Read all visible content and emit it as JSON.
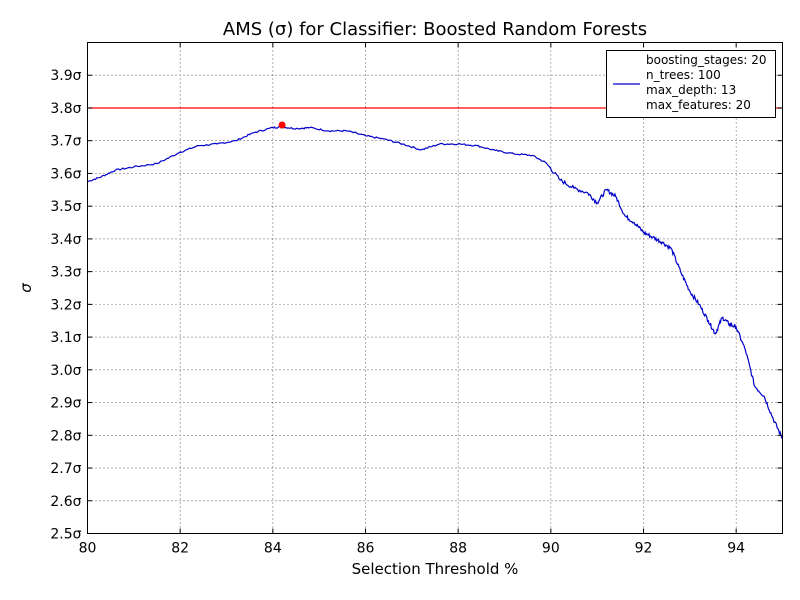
{
  "chart_data": {
    "type": "line",
    "title": "AMS (σ) for Classifier: Boosted Random Forests",
    "xlabel": "Selection Threshold %",
    "ylabel": "σ",
    "xlim": [
      80,
      95
    ],
    "ylim": [
      2.5,
      4.0
    ],
    "x_ticks": [
      80,
      82,
      84,
      86,
      88,
      90,
      92,
      94
    ],
    "y_ticks": [
      2.5,
      2.6,
      2.7,
      2.8,
      2.9,
      3.0,
      3.1,
      3.2,
      3.3,
      3.4,
      3.5,
      3.6,
      3.7,
      3.8,
      3.9
    ],
    "y_tick_suffix": "σ",
    "grid": true,
    "legend_position": "top-right",
    "legend_lines": [
      "boosting_stages: 20",
      "n_trees: 100",
      "max_depth: 13",
      "max_features: 20"
    ],
    "reference_line": {
      "y": 3.8,
      "color": "#ff0000"
    },
    "max_point": {
      "x": 84.2,
      "y": 3.748,
      "color": "#ff0000"
    },
    "series": [
      {
        "color": "#0000cc",
        "x": [
          80.0,
          80.3,
          80.6,
          81.0,
          81.5,
          82.0,
          82.4,
          82.8,
          83.2,
          83.6,
          84.0,
          84.2,
          84.5,
          84.8,
          85.2,
          85.6,
          86.0,
          86.4,
          86.8,
          87.2,
          87.6,
          88.0,
          88.4,
          88.8,
          89.2,
          89.6,
          89.9,
          90.2,
          90.5,
          90.8,
          91.0,
          91.2,
          91.4,
          91.6,
          91.8,
          92.0,
          92.2,
          92.4,
          92.6,
          92.8,
          93.0,
          93.2,
          93.4,
          93.55,
          93.7,
          93.85,
          94.0,
          94.2,
          94.4,
          94.6,
          94.8,
          95.0
        ],
        "y": [
          3.575,
          3.59,
          3.61,
          3.62,
          3.63,
          3.665,
          3.685,
          3.69,
          3.7,
          3.725,
          3.74,
          3.742,
          3.737,
          3.74,
          3.73,
          3.73,
          3.715,
          3.705,
          3.69,
          3.672,
          3.69,
          3.69,
          3.685,
          3.67,
          3.66,
          3.655,
          3.632,
          3.58,
          3.555,
          3.54,
          3.51,
          3.55,
          3.53,
          3.47,
          3.45,
          3.42,
          3.405,
          3.39,
          3.37,
          3.3,
          3.24,
          3.2,
          3.15,
          3.11,
          3.16,
          3.14,
          3.13,
          3.06,
          2.95,
          2.92,
          2.85,
          2.79
        ]
      }
    ]
  }
}
